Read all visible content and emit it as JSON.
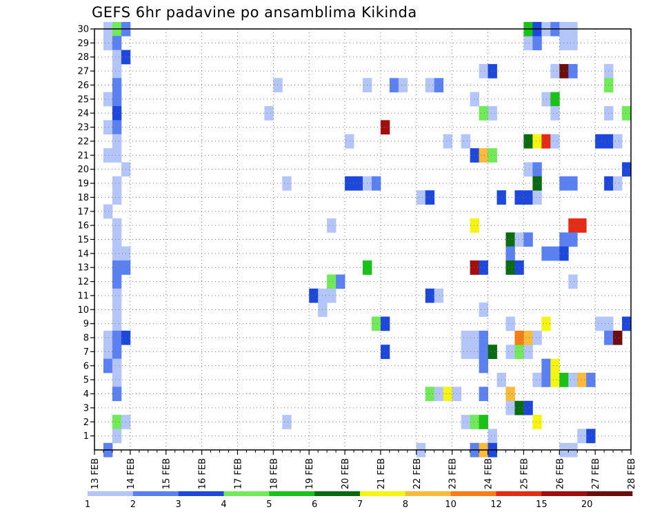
{
  "title": "GEFS 6hr padavine po ansamblima Kikinda",
  "chart_data": {
    "type": "heatmap",
    "title": "GEFS 6hr padavine po ansamblima Kikinda",
    "xlabel": "",
    "ylabel": "",
    "x_ticks": [
      "13 FEB",
      "14 FEB",
      "15 FEB",
      "16 FEB",
      "17 FEB",
      "18 FEB",
      "19 FEB",
      "20 FEB",
      "21 FEB",
      "22 FEB",
      "23 FEB",
      "24 FEB",
      "25 FEB",
      "26 FEB",
      "27 FEB",
      "28 FEB"
    ],
    "y_ticks": [
      "1",
      "2",
      "3",
      "4",
      "5",
      "6",
      "7",
      "8",
      "9",
      "10",
      "11",
      "12",
      "13",
      "14",
      "15",
      "16",
      "17",
      "18",
      "19",
      "20",
      "21",
      "22",
      "23",
      "24",
      "25",
      "26",
      "27",
      "28",
      "29",
      "30"
    ],
    "steps_per_day": 4,
    "ylim": [
      0,
      30
    ],
    "grid": true,
    "legend_placement": "bottom",
    "levels": [
      "1",
      "2",
      "3",
      "4",
      "5",
      "6",
      "7",
      "8",
      "10",
      "12",
      "15",
      "20"
    ],
    "colors": [
      "#b4c5fa",
      "#5b80f2",
      "#1d48da",
      "#70ea58",
      "#19c119",
      "#0a6b10",
      "#f5f514",
      "#fbba39",
      "#f67d18",
      "#e42b16",
      "#a00e0e",
      "#6e0d0d"
    ],
    "cells": [
      {
        "m": 30,
        "t": 1,
        "c": 0
      },
      {
        "m": 30,
        "t": 2,
        "c": 3
      },
      {
        "m": 30,
        "t": 3,
        "c": 1
      },
      {
        "m": 29,
        "t": 1,
        "c": 0
      },
      {
        "m": 29,
        "t": 2,
        "c": 1
      },
      {
        "m": 28,
        "t": 2,
        "c": 0
      },
      {
        "m": 28,
        "t": 3,
        "c": 2
      },
      {
        "m": 27,
        "t": 2,
        "c": 0
      },
      {
        "m": 26,
        "t": 2,
        "c": 1
      },
      {
        "m": 25,
        "t": 1,
        "c": 0
      },
      {
        "m": 25,
        "t": 2,
        "c": 1
      },
      {
        "m": 24,
        "t": 2,
        "c": 2
      },
      {
        "m": 23,
        "t": 1,
        "c": 0
      },
      {
        "m": 23,
        "t": 2,
        "c": 1
      },
      {
        "m": 22,
        "t": 2,
        "c": 0
      },
      {
        "m": 21,
        "t": 1,
        "c": 0
      },
      {
        "m": 21,
        "t": 2,
        "c": 0
      },
      {
        "m": 20,
        "t": 3,
        "c": 0
      },
      {
        "m": 19,
        "t": 2,
        "c": 0
      },
      {
        "m": 18,
        "t": 2,
        "c": 0
      },
      {
        "m": 17,
        "t": 1,
        "c": 0
      },
      {
        "m": 16,
        "t": 2,
        "c": 0
      },
      {
        "m": 15,
        "t": 2,
        "c": 0
      },
      {
        "m": 14,
        "t": 2,
        "c": 0
      },
      {
        "m": 14,
        "t": 3,
        "c": 0
      },
      {
        "m": 13,
        "t": 2,
        "c": 1
      },
      {
        "m": 13,
        "t": 3,
        "c": 1
      },
      {
        "m": 12,
        "t": 2,
        "c": 1
      },
      {
        "m": 11,
        "t": 2,
        "c": 0
      },
      {
        "m": 10,
        "t": 2,
        "c": 0
      },
      {
        "m": 9,
        "t": 2,
        "c": 0
      },
      {
        "m": 8,
        "t": 1,
        "c": 0
      },
      {
        "m": 8,
        "t": 2,
        "c": 1
      },
      {
        "m": 8,
        "t": 3,
        "c": 2
      },
      {
        "m": 7,
        "t": 1,
        "c": 0
      },
      {
        "m": 7,
        "t": 2,
        "c": 1
      },
      {
        "m": 6,
        "t": 1,
        "c": 1
      },
      {
        "m": 6,
        "t": 2,
        "c": 0
      },
      {
        "m": 5,
        "t": 2,
        "c": 0
      },
      {
        "m": 4,
        "t": 2,
        "c": 1
      },
      {
        "m": 2,
        "t": 2,
        "c": 3
      },
      {
        "m": 2,
        "t": 3,
        "c": 0
      },
      {
        "m": 1,
        "t": 2,
        "c": 0
      },
      {
        "m": 0,
        "t": 1,
        "c": 1
      },
      {
        "m": 26,
        "t": 20,
        "c": 0
      },
      {
        "m": 24,
        "t": 19,
        "c": 0
      },
      {
        "m": 19,
        "t": 21,
        "c": 0
      },
      {
        "m": 2,
        "t": 21,
        "c": 0
      },
      {
        "m": 16,
        "t": 26,
        "c": 0
      },
      {
        "m": 12,
        "t": 26,
        "c": 3
      },
      {
        "m": 12,
        "t": 27,
        "c": 1
      },
      {
        "m": 11,
        "t": 24,
        "c": 2
      },
      {
        "m": 11,
        "t": 25,
        "c": 0
      },
      {
        "m": 11,
        "t": 26,
        "c": 0
      },
      {
        "m": 10,
        "t": 25,
        "c": 0
      },
      {
        "m": 22,
        "t": 28,
        "c": 0
      },
      {
        "m": 19,
        "t": 28,
        "c": 2
      },
      {
        "m": 19,
        "t": 29,
        "c": 2
      },
      {
        "m": 26,
        "t": 30,
        "c": 0
      },
      {
        "m": 19,
        "t": 30,
        "c": 0
      },
      {
        "m": 19,
        "t": 31,
        "c": 1
      },
      {
        "m": 13,
        "t": 30,
        "c": 4
      },
      {
        "m": 23,
        "t": 32,
        "c": 10
      },
      {
        "m": 9,
        "t": 31,
        "c": 3
      },
      {
        "m": 9,
        "t": 32,
        "c": 2
      },
      {
        "m": 7,
        "t": 32,
        "c": 2
      },
      {
        "m": 26,
        "t": 33,
        "c": 1
      },
      {
        "m": 26,
        "t": 34,
        "c": 0
      },
      {
        "m": 26,
        "t": 37,
        "c": 0
      },
      {
        "m": 26,
        "t": 38,
        "c": 1
      },
      {
        "m": 18,
        "t": 36,
        "c": 0
      },
      {
        "m": 18,
        "t": 37,
        "c": 2
      },
      {
        "m": 11,
        "t": 37,
        "c": 2
      },
      {
        "m": 11,
        "t": 38,
        "c": 0
      },
      {
        "m": 4,
        "t": 37,
        "c": 3
      },
      {
        "m": 4,
        "t": 38,
        "c": 0
      },
      {
        "m": 4,
        "t": 39,
        "c": 6
      },
      {
        "m": 4,
        "t": 40,
        "c": 0
      },
      {
        "m": 0,
        "t": 36,
        "c": 0
      },
      {
        "m": 22,
        "t": 39,
        "c": 0
      },
      {
        "m": 22,
        "t": 41,
        "c": 0
      },
      {
        "m": 25,
        "t": 42,
        "c": 0
      },
      {
        "m": 21,
        "t": 42,
        "c": 2
      },
      {
        "m": 21,
        "t": 43,
        "c": 7
      },
      {
        "m": 21,
        "t": 44,
        "c": 3
      },
      {
        "m": 27,
        "t": 43,
        "c": 0
      },
      {
        "m": 27,
        "t": 44,
        "c": 2
      },
      {
        "m": 24,
        "t": 43,
        "c": 3
      },
      {
        "m": 24,
        "t": 44,
        "c": 0
      },
      {
        "m": 16,
        "t": 42,
        "c": 6
      },
      {
        "m": 13,
        "t": 42,
        "c": 10
      },
      {
        "m": 13,
        "t": 43,
        "c": 2
      },
      {
        "m": 10,
        "t": 43,
        "c": 0
      },
      {
        "m": 8,
        "t": 41,
        "c": 0
      },
      {
        "m": 8,
        "t": 42,
        "c": 0
      },
      {
        "m": 8,
        "t": 43,
        "c": 1
      },
      {
        "m": 7,
        "t": 41,
        "c": 0
      },
      {
        "m": 7,
        "t": 42,
        "c": 0
      },
      {
        "m": 7,
        "t": 43,
        "c": 1
      },
      {
        "m": 7,
        "t": 44,
        "c": 5
      },
      {
        "m": 6,
        "t": 43,
        "c": 1
      },
      {
        "m": 5,
        "t": 45,
        "c": 0
      },
      {
        "m": 4,
        "t": 43,
        "c": 1
      },
      {
        "m": 2,
        "t": 41,
        "c": 0
      },
      {
        "m": 2,
        "t": 42,
        "c": 3
      },
      {
        "m": 2,
        "t": 43,
        "c": 4
      },
      {
        "m": 1,
        "t": 44,
        "c": 0
      },
      {
        "m": 0,
        "t": 42,
        "c": 1
      },
      {
        "m": 0,
        "t": 43,
        "c": 7
      },
      {
        "m": 0,
        "t": 44,
        "c": 2
      },
      {
        "m": 18,
        "t": 45,
        "c": 2
      },
      {
        "m": 15,
        "t": 46,
        "c": 5
      },
      {
        "m": 14,
        "t": 46,
        "c": 1
      },
      {
        "m": 13,
        "t": 46,
        "c": 5
      },
      {
        "m": 9,
        "t": 46,
        "c": 0
      },
      {
        "m": 7,
        "t": 46,
        "c": 0
      },
      {
        "m": 7,
        "t": 47,
        "c": 3
      },
      {
        "m": 7,
        "t": 48,
        "c": 0
      },
      {
        "m": 8,
        "t": 47,
        "c": 8
      },
      {
        "m": 8,
        "t": 48,
        "c": 7
      },
      {
        "m": 8,
        "t": 49,
        "c": 0
      },
      {
        "m": 4,
        "t": 46,
        "c": 7
      },
      {
        "m": 3,
        "t": 46,
        "c": 0
      },
      {
        "m": 3,
        "t": 47,
        "c": 5
      },
      {
        "m": 3,
        "t": 48,
        "c": 2
      },
      {
        "m": 13,
        "t": 47,
        "c": 2
      },
      {
        "m": 15,
        "t": 47,
        "c": 0
      },
      {
        "m": 15,
        "t": 48,
        "c": 1
      },
      {
        "m": 18,
        "t": 47,
        "c": 2
      },
      {
        "m": 18,
        "t": 48,
        "c": 2
      },
      {
        "m": 18,
        "t": 49,
        "c": 0
      },
      {
        "m": 20,
        "t": 48,
        "c": 0
      },
      {
        "m": 20,
        "t": 49,
        "c": 1
      },
      {
        "m": 22,
        "t": 48,
        "c": 5
      },
      {
        "m": 22,
        "t": 49,
        "c": 6
      },
      {
        "m": 22,
        "t": 50,
        "c": 9
      },
      {
        "m": 22,
        "t": 51,
        "c": 0
      },
      {
        "m": 19,
        "t": 49,
        "c": 5
      },
      {
        "m": 29,
        "t": 48,
        "c": 0
      },
      {
        "m": 29,
        "t": 49,
        "c": 1
      },
      {
        "m": 30,
        "t": 48,
        "c": 4
      },
      {
        "m": 30,
        "t": 49,
        "c": 2
      },
      {
        "m": 30,
        "t": 50,
        "c": 0
      },
      {
        "m": 30,
        "t": 51,
        "c": 1
      },
      {
        "m": 25,
        "t": 50,
        "c": 0
      },
      {
        "m": 25,
        "t": 51,
        "c": 4
      },
      {
        "m": 24,
        "t": 51,
        "c": 0
      },
      {
        "m": 27,
        "t": 51,
        "c": 0
      },
      {
        "m": 14,
        "t": 50,
        "c": 1
      },
      {
        "m": 14,
        "t": 51,
        "c": 1
      },
      {
        "m": 9,
        "t": 50,
        "c": 6
      },
      {
        "m": 6,
        "t": 50,
        "c": 1
      },
      {
        "m": 6,
        "t": 51,
        "c": 6
      },
      {
        "m": 5,
        "t": 49,
        "c": 0
      },
      {
        "m": 5,
        "t": 50,
        "c": 1
      },
      {
        "m": 5,
        "t": 51,
        "c": 6
      },
      {
        "m": 2,
        "t": 49,
        "c": 6
      },
      {
        "m": 30,
        "t": 52,
        "c": 0
      },
      {
        "m": 30,
        "t": 53,
        "c": 0
      },
      {
        "m": 29,
        "t": 52,
        "c": 0
      },
      {
        "m": 29,
        "t": 53,
        "c": 0
      },
      {
        "m": 27,
        "t": 52,
        "c": 11
      },
      {
        "m": 27,
        "t": 53,
        "c": 1
      },
      {
        "m": 19,
        "t": 52,
        "c": 1
      },
      {
        "m": 19,
        "t": 53,
        "c": 1
      },
      {
        "m": 16,
        "t": 53,
        "c": 9
      },
      {
        "m": 16,
        "t": 54,
        "c": 9
      },
      {
        "m": 15,
        "t": 52,
        "c": 1
      },
      {
        "m": 15,
        "t": 53,
        "c": 1
      },
      {
        "m": 14,
        "t": 52,
        "c": 2
      },
      {
        "m": 12,
        "t": 53,
        "c": 0
      },
      {
        "m": 5,
        "t": 52,
        "c": 4
      },
      {
        "m": 5,
        "t": 53,
        "c": 0
      },
      {
        "m": 5,
        "t": 54,
        "c": 7
      },
      {
        "m": 5,
        "t": 55,
        "c": 1
      },
      {
        "m": 1,
        "t": 54,
        "c": 0
      },
      {
        "m": 1,
        "t": 55,
        "c": 2
      },
      {
        "m": 0,
        "t": 52,
        "c": 0
      },
      {
        "m": 0,
        "t": 53,
        "c": 0
      },
      {
        "m": 27,
        "t": 57,
        "c": 0
      },
      {
        "m": 26,
        "t": 57,
        "c": 3
      },
      {
        "m": 24,
        "t": 57,
        "c": 0
      },
      {
        "m": 22,
        "t": 56,
        "c": 2
      },
      {
        "m": 22,
        "t": 57,
        "c": 2
      },
      {
        "m": 22,
        "t": 58,
        "c": 0
      },
      {
        "m": 19,
        "t": 57,
        "c": 2
      },
      {
        "m": 19,
        "t": 58,
        "c": 0
      },
      {
        "m": 9,
        "t": 56,
        "c": 0
      },
      {
        "m": 9,
        "t": 57,
        "c": 0
      },
      {
        "m": 8,
        "t": 57,
        "c": 1
      },
      {
        "m": 8,
        "t": 58,
        "c": 11
      },
      {
        "m": 24,
        "t": 59,
        "c": 3
      },
      {
        "m": 20,
        "t": 59,
        "c": 2
      },
      {
        "m": 9,
        "t": 59,
        "c": 2
      }
    ]
  }
}
